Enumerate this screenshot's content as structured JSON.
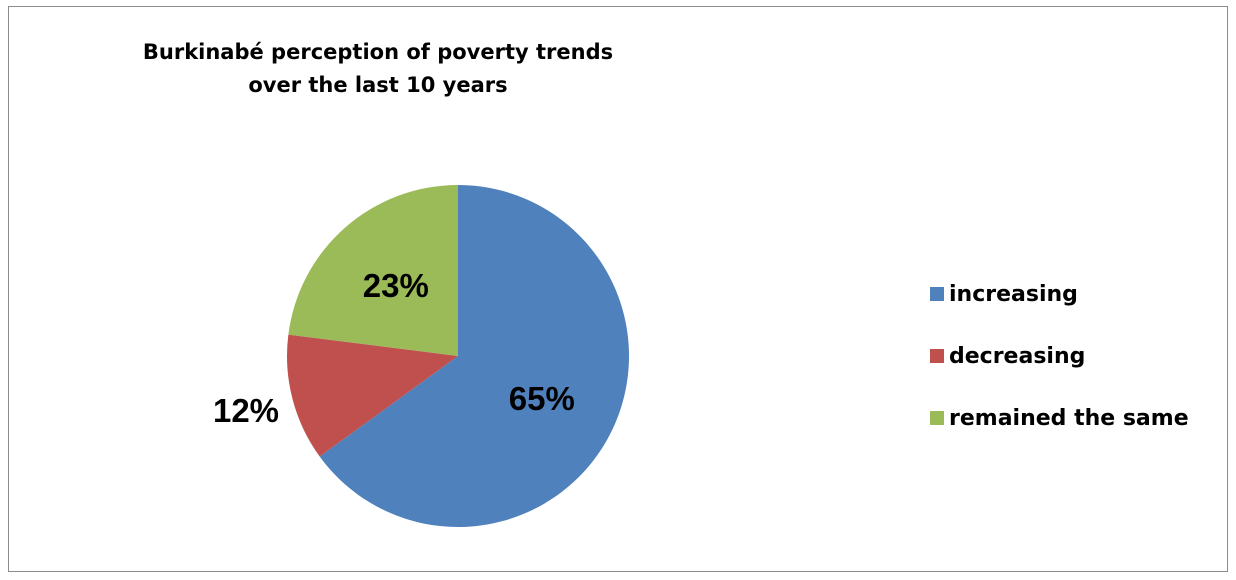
{
  "chart_data": {
    "type": "pie",
    "title": "Burkinabé perception of poverty trends\nover the last 10 years",
    "slices": [
      {
        "label": "increasing",
        "value": 65,
        "display": "65%",
        "color": "#4f81bd"
      },
      {
        "label": "decreasing",
        "value": 12,
        "display": "12%",
        "color": "#c0504d"
      },
      {
        "label": "remained the same",
        "value": 23,
        "display": "23%",
        "color": "#9bbb59"
      }
    ],
    "legend_position": "right"
  }
}
